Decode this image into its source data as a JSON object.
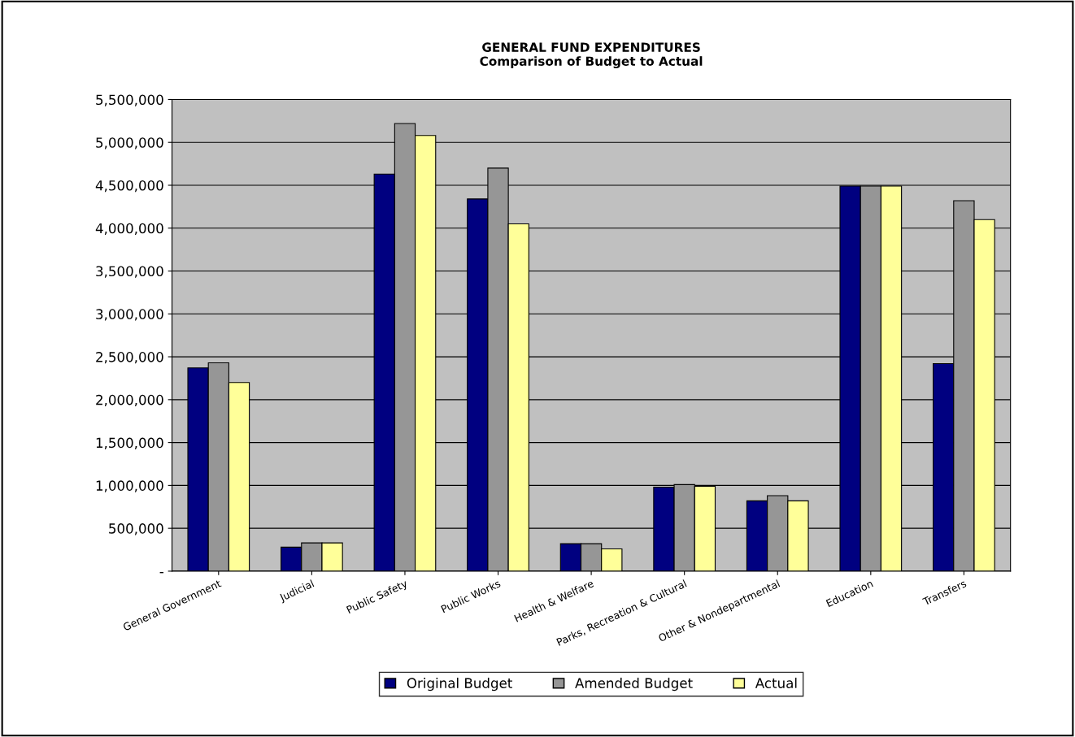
{
  "chart_data": {
    "type": "bar",
    "title": "GENERAL FUND EXPENDITURES\nComparison of Budget to Actual",
    "categories": [
      "General Government",
      "Judicial",
      "Public Safety",
      "Public Works",
      "Health & Welfare",
      "Parks, Recreation & Cultural",
      "Other & Nondepartmental",
      "Education",
      "Transfers"
    ],
    "series": [
      {
        "name": "Original Budget",
        "color": "#000080",
        "values": [
          2370000,
          280000,
          4630000,
          4340000,
          320000,
          980000,
          820000,
          4490000,
          2420000
        ]
      },
      {
        "name": "Amended Budget",
        "color": "#969696",
        "values": [
          2430000,
          330000,
          5220000,
          4700000,
          320000,
          1010000,
          880000,
          4490000,
          4320000
        ]
      },
      {
        "name": "Actual",
        "color": "#ffff99",
        "values": [
          2200000,
          330000,
          5080000,
          4050000,
          260000,
          990000,
          820000,
          4490000,
          4100000
        ]
      }
    ],
    "ylim": [
      0,
      5500000
    ],
    "yticks": [
      {
        "value": 0,
        "label": "-"
      },
      {
        "value": 500000,
        "label": "500,000"
      },
      {
        "value": 1000000,
        "label": "1,000,000"
      },
      {
        "value": 1500000,
        "label": "1,500,000"
      },
      {
        "value": 2000000,
        "label": "2,000,000"
      },
      {
        "value": 2500000,
        "label": "2,500,000"
      },
      {
        "value": 3000000,
        "label": "3,000,000"
      },
      {
        "value": 3500000,
        "label": "3,500,000"
      },
      {
        "value": 4000000,
        "label": "4,000,000"
      },
      {
        "value": 4500000,
        "label": "4,500,000"
      },
      {
        "value": 5000000,
        "label": "5,000,000"
      },
      {
        "value": 5500000,
        "label": "5,500,000"
      }
    ],
    "grid": "y",
    "legend": "bottom"
  }
}
